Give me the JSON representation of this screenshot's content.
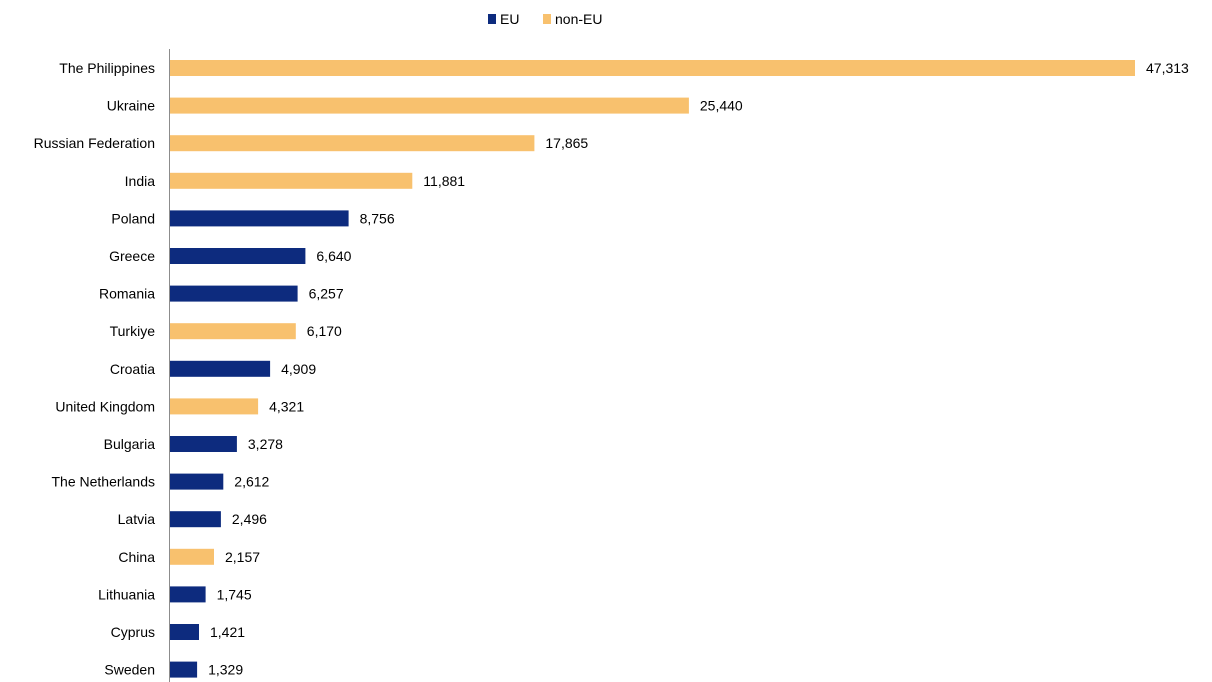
{
  "chart_data": {
    "type": "bar",
    "orientation": "horizontal",
    "title": "",
    "xlabel": "",
    "ylabel": "",
    "xlim": [
      0,
      48000
    ],
    "grid": false,
    "legend_position": "top-center",
    "legend": [
      {
        "name": "EU",
        "color": "#0d2b7e"
      },
      {
        "name": "non-EU",
        "color": "#f8c16e"
      }
    ],
    "categories": [
      "The Philippines",
      "Ukraine",
      "Russian Federation",
      "India",
      "Poland",
      "Greece",
      "Romania",
      "Turkiye",
      "Croatia",
      "United Kingdom",
      "Bulgaria",
      "The Netherlands",
      "Latvia",
      "China",
      "Lithuania",
      "Cyprus",
      "Sweden"
    ],
    "values": [
      47313,
      25440,
      17865,
      11881,
      8756,
      6640,
      6257,
      6170,
      4909,
      4321,
      3278,
      2612,
      2496,
      2157,
      1745,
      1421,
      1329
    ],
    "value_labels": [
      "47,313",
      "25,440",
      "17,865",
      "11,881",
      "8,756",
      "6,640",
      "6,257",
      "6,170",
      "4,909",
      "4,321",
      "3,278",
      "2,612",
      "2,496",
      "2,157",
      "1,745",
      "1,421",
      "1,329"
    ],
    "group": [
      "non-EU",
      "non-EU",
      "non-EU",
      "non-EU",
      "EU",
      "EU",
      "EU",
      "non-EU",
      "EU",
      "non-EU",
      "EU",
      "EU",
      "EU",
      "non-EU",
      "EU",
      "EU",
      "EU"
    ]
  }
}
